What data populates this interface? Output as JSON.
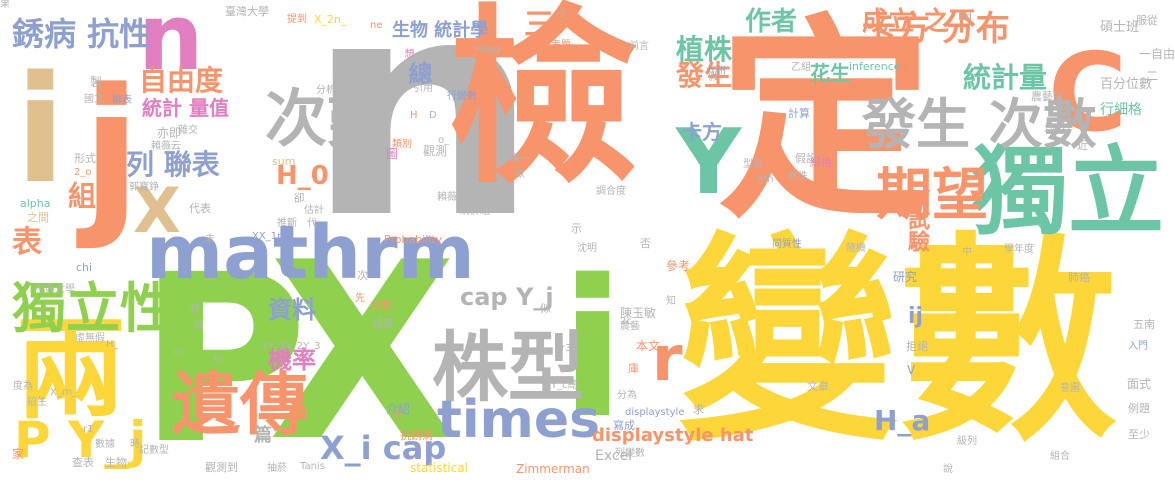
{
  "palette": {
    "grey": "#b4b4b4",
    "orange": "#f7946b",
    "yellow": "#fdd73a",
    "green": "#8fd14f",
    "teal": "#6cc6a6",
    "blue": "#8ea0cf",
    "pink": "#e27fc0",
    "tan": "#e0c08e"
  },
  "words": [
    {
      "text": "n",
      "color": "grey"
    },
    {
      "text": "檢",
      "color": "orange"
    },
    {
      "text": "定",
      "color": "orange"
    },
    {
      "text": "變數",
      "color": "yellow"
    },
    {
      "text": "i",
      "color": "green"
    },
    {
      "text": "X",
      "color": "green"
    },
    {
      "text": "P",
      "color": "green"
    },
    {
      "text": "j",
      "color": "orange"
    },
    {
      "text": "i",
      "color": "tan"
    },
    {
      "text": "獨立",
      "color": "teal"
    },
    {
      "text": "mathrm",
      "color": "blue"
    },
    {
      "text": "株型",
      "color": "grey"
    },
    {
      "text": "C",
      "color": "orange"
    },
    {
      "text": "n",
      "color": "pink"
    },
    {
      "text": "兩",
      "color": "yellow"
    },
    {
      "text": "遺傳",
      "color": "orange"
    },
    {
      "text": "times",
      "color": "blue"
    },
    {
      "text": "P Y_j",
      "color": "yellow"
    },
    {
      "text": "次數",
      "color": "grey"
    },
    {
      "text": "發生 次數",
      "color": "grey"
    },
    {
      "text": "獨立性",
      "color": "green"
    },
    {
      "text": "Y",
      "color": "teal"
    },
    {
      "text": "期望",
      "color": "orange"
    },
    {
      "text": "X",
      "color": "tan"
    },
    {
      "text": "r",
      "color": "orange"
    },
    {
      "text": "銹病 抗性",
      "color": "blue"
    },
    {
      "text": "卡方 分布",
      "color": "orange"
    },
    {
      "text": "自由度",
      "color": "orange"
    },
    {
      "text": "列 聯表",
      "color": "blue"
    },
    {
      "text": "X_i cap",
      "color": "blue"
    },
    {
      "text": "表",
      "color": "orange"
    },
    {
      "text": "統計量",
      "color": "teal"
    },
    {
      "text": "成立 之下",
      "color": "orange"
    },
    {
      "text": "植株",
      "color": "teal"
    },
    {
      "text": "發生",
      "color": "orange"
    },
    {
      "text": "作者",
      "color": "teal"
    },
    {
      "text": "資料",
      "color": "blue"
    },
    {
      "text": "機率",
      "color": "pink"
    },
    {
      "text": "H_0",
      "color": "orange"
    },
    {
      "text": "H_a",
      "color": "blue"
    },
    {
      "text": "cap Y_j",
      "color": "grey"
    },
    {
      "text": "統計 量值",
      "color": "pink"
    },
    {
      "text": "生物 統計學",
      "color": "blue"
    },
    {
      "text": "displaystyle hat",
      "color": "orange"
    },
    {
      "text": "卡方",
      "color": "blue"
    },
    {
      "text": "花生",
      "color": "teal"
    },
    {
      "text": "三",
      "color": "orange"
    },
    {
      "text": "總",
      "color": "blue"
    },
    {
      "text": "組",
      "color": "orange"
    },
    {
      "text": "試驗",
      "color": "orange"
    },
    {
      "text": "ij",
      "color": "blue"
    },
    {
      "text": "百分位數",
      "color": "grey"
    },
    {
      "text": "碩士班",
      "color": "grey"
    },
    {
      "text": "行細格",
      "color": "teal"
    },
    {
      "text": "臺灣大學",
      "color": "grey"
    },
    {
      "text": "X_2n_",
      "color": "yellow"
    },
    {
      "text": "inference",
      "color": "teal"
    },
    {
      "text": "Probability",
      "color": "orange"
    },
    {
      "text": "Zimmerman",
      "color": "orange"
    },
    {
      "text": "statistical",
      "color": "yellow"
    },
    {
      "text": "displaystyle",
      "color": "blue"
    },
    {
      "text": "Excel",
      "color": "grey"
    },
    {
      "text": "研究",
      "color": "blue"
    },
    {
      "text": "參考",
      "color": "orange"
    },
    {
      "text": "陳玉敏",
      "color": "grey"
    },
    {
      "text": "本文",
      "color": "orange"
    },
    {
      "text": "介紹",
      "color": "blue"
    },
    {
      "text": "抗銹病",
      "color": "orange"
    },
    {
      "text": "寫成",
      "color": "blue"
    },
    {
      "text": "列變數",
      "color": "grey"
    },
    {
      "text": "篇",
      "color": "grey"
    },
    {
      "text": "觀測到",
      "color": "grey"
    },
    {
      "text": "YY_1Y_2Y_3",
      "color": "grey"
    },
    {
      "text": "XX_1n_",
      "color": "blue"
    },
    {
      "text": "alpha",
      "color": "teal"
    },
    {
      "text": "之間",
      "color": "tan"
    },
    {
      "text": "形式",
      "color": "grey"
    },
    {
      "text": "代表",
      "color": "grey"
    },
    {
      "text": "sum",
      "color": "tan"
    },
    {
      "text": "假設",
      "color": "grey"
    },
    {
      "text": "細格",
      "color": "pink"
    },
    {
      "text": "計算",
      "color": "blue"
    },
    {
      "text": "認定",
      "color": "orange"
    },
    {
      "text": "乙組",
      "color": "grey"
    },
    {
      "text": "農藝所",
      "color": "grey"
    },
    {
      "text": "九州",
      "color": "blue"
    },
    {
      "text": "前言",
      "color": "grey"
    },
    {
      "text": "考題",
      "color": "orange"
    },
    {
      "text": "Hogg",
      "color": "grey"
    },
    {
      "text": "r2",
      "color": "grey"
    },
    {
      "text": "提到",
      "color": "orange"
    },
    {
      "text": "ne",
      "color": "orange"
    },
    {
      "text": "想",
      "color": "pink"
    },
    {
      "text": "分析",
      "color": "grey"
    },
    {
      "text": "引用",
      "color": "grey"
    },
    {
      "text": "行變數",
      "color": "blue"
    },
    {
      "text": "類別",
      "color": "orange"
    },
    {
      "text": "對調",
      "color": "grey"
    },
    {
      "text": "讀者",
      "color": "grey"
    },
    {
      "text": "圖",
      "color": "pink"
    },
    {
      "text": "國立",
      "color": "grey"
    },
    {
      "text": "聯表",
      "color": "blue"
    },
    {
      "text": "大於",
      "color": "grey"
    },
    {
      "text": "製",
      "color": "grey"
    },
    {
      "text": "雜交",
      "color": "grey"
    },
    {
      "text": "賴薇云",
      "color": "grey"
    },
    {
      "text": "郭寶錚",
      "color": "grey"
    },
    {
      "text": "估計",
      "color": "grey"
    },
    {
      "text": "推斷",
      "color": "grey"
    },
    {
      "text": "卻",
      "color": "grey"
    },
    {
      "text": "代",
      "color": "grey"
    },
    {
      "text": "賴薇云繪",
      "color": "grey"
    },
    {
      "text": "統計組",
      "color": "grey"
    },
    {
      "text": "調合度",
      "color": "grey"
    },
    {
      "text": "沈明",
      "color": "grey"
    },
    {
      "text": "示",
      "color": "grey"
    },
    {
      "text": "否",
      "color": "grey"
    },
    {
      "text": "9th",
      "color": "grey"
    },
    {
      "text": "型態",
      "color": "grey"
    },
    {
      "text": "抗性",
      "color": "grey"
    },
    {
      "text": "隨機",
      "color": "grey"
    },
    {
      "text": "同質性",
      "color": "blue"
    },
    {
      "text": "學年度",
      "color": "grey"
    },
    {
      "text": "肺癌",
      "color": "grey"
    },
    {
      "text": "五南",
      "color": "grey"
    },
    {
      "text": "入門",
      "color": "blue"
    },
    {
      "text": "面式",
      "color": "grey"
    },
    {
      "text": "例題",
      "color": "grey"
    },
    {
      "text": "至少",
      "color": "grey"
    },
    {
      "text": "組合",
      "color": "grey"
    },
    {
      "text": "級列",
      "color": "grey"
    },
    {
      "text": "說",
      "color": "grey"
    },
    {
      "text": "似",
      "color": "grey"
    },
    {
      "text": "文獻",
      "color": "orange"
    },
    {
      "text": "調查",
      "color": "grey"
    },
    {
      "text": "chi",
      "color": "blue"
    },
    {
      "text": "中興大學",
      "color": "grey"
    },
    {
      "text": "虛無假",
      "color": "grey"
    },
    {
      "text": "招生",
      "color": "grey"
    },
    {
      "text": "查表",
      "color": "grey"
    },
    {
      "text": "生物",
      "color": "grey"
    },
    {
      "text": "數據",
      "color": "grey"
    },
    {
      "text": "記數型",
      "color": "grey"
    },
    {
      "text": "抽菸",
      "color": "grey"
    },
    {
      "text": "Tanis",
      "color": "grey"
    },
    {
      "text": "r1",
      "color": "grey"
    },
    {
      "text": "家",
      "color": "orange"
    },
    {
      "text": "次",
      "color": "grey"
    },
    {
      "text": "先",
      "color": "orange"
    },
    {
      "text": "2c",
      "color": "grey"
    },
    {
      "text": "農藝",
      "color": "grey"
    },
    {
      "text": "r3",
      "color": "grey"
    },
    {
      "text": "庫",
      "color": "orange"
    },
    {
      "text": "求",
      "color": "grey"
    },
    {
      "text": "拒絕",
      "color": "grey"
    },
    {
      "text": "分為",
      "color": "grey"
    },
    {
      "text": "文章",
      "color": "grey"
    },
    {
      "text": "意圖",
      "color": "grey"
    },
    {
      "text": "1c",
      "color": "grey"
    },
    {
      "text": "Ed",
      "color": "grey"
    },
    {
      "text": "服從",
      "color": "grey"
    },
    {
      "text": "一自由",
      "color": "grey"
    },
    {
      "text": "近",
      "color": "grey"
    },
    {
      "text": "均",
      "color": "grey"
    },
    {
      "text": "觀測",
      "color": "grey"
    },
    {
      "text": "二",
      "color": "grey"
    },
    {
      "text": "中",
      "color": "grey"
    },
    {
      "text": "育",
      "color": "grey"
    },
    {
      "text": "項",
      "color": "grey"
    },
    {
      "text": "rc",
      "color": "grey"
    },
    {
      "text": "亦即",
      "color": "grey"
    },
    {
      "text": "E",
      "color": "orange"
    },
    {
      "text": "V",
      "color": "blue"
    },
    {
      "text": "H",
      "color": "orange"
    },
    {
      "text": "D",
      "color": "grey"
    },
    {
      "text": "列",
      "color": "grey"
    },
    {
      "text": "度為",
      "color": "grey"
    },
    {
      "text": "2_o",
      "color": "orange"
    },
    {
      "text": "X_rn_",
      "color": "grey"
    },
    {
      "text": "Y_c總",
      "color": "grey"
    },
    {
      "text": "r_",
      "color": "grey"
    },
    {
      "text": "H_",
      "color": "grey"
    },
    {
      "text": "o_",
      "color": "grey"
    },
    {
      "text": "圖一",
      "color": "grey"
    },
    {
      "text": "欲",
      "color": "grey"
    },
    {
      "text": "假",
      "color": "grey"
    },
    {
      "text": "知",
      "color": "grey"
    },
    {
      "text": "時",
      "color": "grey"
    },
    {
      "text": "未",
      "color": "grey"
    },
    {
      "text": "果",
      "color": "grey"
    }
  ]
}
